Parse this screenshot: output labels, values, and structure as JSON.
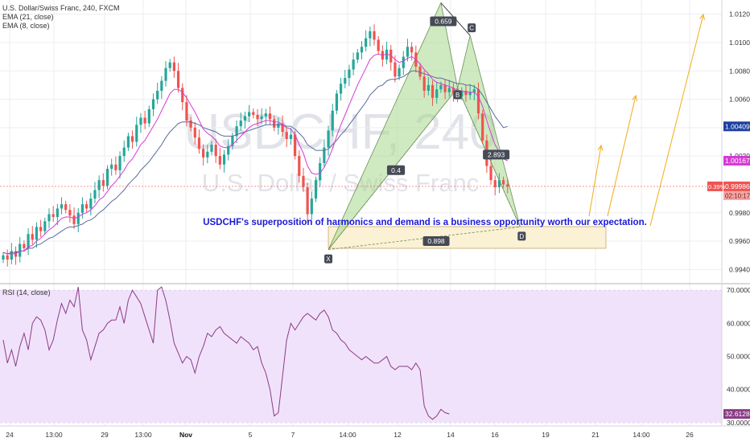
{
  "header": {
    "symbol_line": "U.S. Dollar/Swiss Franc, 240, FXCM",
    "indicators": [
      "EMA (21, close)",
      "EMA (8, close)"
    ]
  },
  "watermark": {
    "symbol": "USDCHF, 240",
    "name": "U.S. Dollar / Swiss Franc"
  },
  "annotation": "USDCHF's superposition of harmonics and demand is a business opportunity worth our expectation.",
  "colors": {
    "up": "#26a69a",
    "down": "#ef5350",
    "ema21": "#5b6c9a",
    "ema8": "#d63ad6",
    "rsi": "#8a3c86",
    "rsi_band": "#f1e2fb",
    "pattern": "#a8d98e",
    "zone": "#fbf1d5",
    "arrow": "#f2b22a",
    "text_blue": "#1a1ad6"
  },
  "chart_data": [
    {
      "type": "candlestick",
      "name": "USDCHF",
      "ylim": [
        0.993,
        1.013
      ],
      "y_ticks": [
        "1.01200",
        "1.01000",
        "1.00800",
        "1.00600",
        "1.00400",
        "1.00200",
        "0.99800",
        "0.99600",
        "0.99400"
      ],
      "x_ticks": [
        "24",
        "13:00",
        "29",
        "13:00",
        "Nov",
        "5",
        "7",
        "14:00",
        "12",
        "14",
        "16",
        "19",
        "21",
        "14:00",
        "26"
      ],
      "price_tags": [
        {
          "label": "1.00409",
          "value": 1.00409,
          "color": "#1e3fa0"
        },
        {
          "label": "1.00167",
          "value": 1.00167,
          "color": "#d63ad6"
        },
        {
          "label": "0.99986",
          "value": 0.99986,
          "color": "#ef5350"
        }
      ],
      "change_label": "0.39%",
      "countdown": "02:10:17",
      "closes": [
        0.995,
        0.9947,
        0.9953,
        0.9949,
        0.9958,
        0.9955,
        0.9965,
        0.9961,
        0.997,
        0.9967,
        0.9974,
        0.9979,
        0.9977,
        0.9983,
        0.9986,
        0.9982,
        0.9978,
        0.9972,
        0.998,
        0.9986,
        0.9983,
        0.999,
        0.9996,
        1.0003,
        0.9999,
        1.0011,
        1.0014,
        1.001,
        1.002,
        1.0026,
        1.0034,
        1.003,
        1.0042,
        1.0047,
        1.0043,
        1.0053,
        1.006,
        1.0066,
        1.0073,
        1.0082,
        1.0086,
        1.008,
        1.0068,
        1.0058,
        1.0045,
        1.004,
        1.0033,
        1.0025,
        1.0019,
        1.0023,
        1.0028,
        1.002,
        1.0014,
        1.0021,
        1.0027,
        1.0034,
        1.0041,
        1.0045,
        1.0048,
        1.0051,
        1.0049,
        1.0046,
        1.0048,
        1.005,
        1.0046,
        1.004,
        1.0043,
        1.0037,
        1.0032,
        1.0035,
        1.002,
        1.0006,
        0.9998,
        0.9979,
        0.999,
        1.0003,
        1.0015,
        1.0026,
        1.0038,
        1.0052,
        1.0064,
        1.0071,
        1.0075,
        1.0081,
        1.0088,
        1.0093,
        1.0097,
        1.0103,
        1.0108,
        1.0102,
        1.0094,
        1.0088,
        1.0095,
        1.0086,
        1.0076,
        1.0082,
        1.009,
        1.0097,
        1.0093,
        1.0083,
        1.0076,
        1.0066,
        1.007,
        1.0061,
        1.0067,
        1.007,
        1.0065,
        1.0068,
        1.0064,
        1.0062,
        1.0066,
        1.0063,
        1.0065,
        1.0067,
        1.005,
        1.0031,
        1.0013,
        1.0003,
        0.9998,
        1.0003,
        1.0,
        0.99986
      ],
      "ema21": [
        0.9952,
        0.9951,
        0.9952,
        0.9952,
        0.9953,
        0.9953,
        0.9955,
        0.9955,
        0.9957,
        0.9958,
        0.996,
        0.9962,
        0.9963,
        0.9965,
        0.9967,
        0.9969,
        0.997,
        0.997,
        0.9971,
        0.9972,
        0.9974,
        0.9975,
        0.9977,
        0.998,
        0.9982,
        0.9985,
        0.9988,
        0.999,
        0.9993,
        0.9996,
        1.0,
        1.0003,
        1.0006,
        1.001,
        1.0013,
        1.0016,
        1.002,
        1.0024,
        1.0028,
        1.0033,
        1.0037,
        1.004,
        1.0043,
        1.0044,
        1.0044,
        1.0044,
        1.0043,
        1.0042,
        1.004,
        1.0039,
        1.0038,
        1.0037,
        1.0035,
        1.0034,
        1.0034,
        1.0034,
        1.0035,
        1.0036,
        1.0037,
        1.0038,
        1.0039,
        1.004,
        1.0041,
        1.0042,
        1.0042,
        1.0042,
        1.0042,
        1.0042,
        1.0041,
        1.0041,
        1.0039,
        1.0036,
        1.0033,
        1.0028,
        1.0026,
        1.0024,
        1.0024,
        1.0024,
        1.0025,
        1.0028,
        1.0031,
        1.0035,
        1.0038,
        1.0042,
        1.0046,
        1.005,
        1.0054,
        1.0058,
        1.0063,
        1.0066,
        1.0069,
        1.007,
        1.0073,
        1.0074,
        1.0074,
        1.0075,
        1.0076,
        1.0078,
        1.008,
        1.008,
        1.0079,
        1.0078,
        1.0077,
        1.0076,
        1.0075,
        1.0075,
        1.0074,
        1.0073,
        1.0072,
        1.0071,
        1.0071,
        1.007,
        1.007,
        1.0069,
        1.0067,
        1.0063,
        1.0058,
        1.0053,
        1.0048,
        1.0044,
        1.004,
        1.00409
      ],
      "ema8": [
        0.9952,
        0.9951,
        0.9951,
        0.9951,
        0.9953,
        0.9953,
        0.9956,
        0.9957,
        0.996,
        0.9962,
        0.9965,
        0.9968,
        0.997,
        0.9973,
        0.9976,
        0.9977,
        0.9977,
        0.9976,
        0.9977,
        0.9979,
        0.998,
        0.9982,
        0.9985,
        0.9989,
        0.9991,
        0.9995,
        0.9999,
        1.0002,
        1.0006,
        1.001,
        1.0015,
        1.0018,
        1.0023,
        1.0028,
        1.0031,
        1.0036,
        1.0041,
        1.0046,
        1.0052,
        1.0058,
        1.0064,
        1.0067,
        1.0067,
        1.0065,
        1.0061,
        1.0056,
        1.0051,
        1.0045,
        1.0039,
        1.0036,
        1.0034,
        1.0031,
        1.0027,
        1.0026,
        1.0026,
        1.0028,
        1.0031,
        1.0034,
        1.0037,
        1.004,
        1.0042,
        1.0043,
        1.0044,
        1.0045,
        1.0045,
        1.0044,
        1.0044,
        1.0042,
        1.004,
        1.0039,
        1.0035,
        1.0028,
        1.0022,
        1.0013,
        1.0008,
        1.0007,
        1.0008,
        1.0012,
        1.0018,
        1.0025,
        1.0034,
        1.0042,
        1.0049,
        1.0056,
        1.0063,
        1.007,
        1.0076,
        1.0082,
        1.0088,
        1.0091,
        1.0092,
        1.0091,
        1.0092,
        1.0091,
        1.0088,
        1.0086,
        1.0087,
        1.0089,
        1.009,
        1.0088,
        1.0085,
        1.0081,
        1.0078,
        1.0074,
        1.0072,
        1.0071,
        1.007,
        1.0069,
        1.0068,
        1.0066,
        1.0066,
        1.0065,
        1.0065,
        1.0065,
        1.0062,
        1.0055,
        1.0045,
        1.0036,
        1.0028,
        1.0023,
        1.0018,
        1.00167
      ]
    },
    {
      "type": "line",
      "name": "RSI (14, close)",
      "ylim": [
        29,
        72
      ],
      "band": [
        30,
        70
      ],
      "y_ticks": [
        "70.0000",
        "60.0000",
        "50.0000",
        "40.0000",
        "30.0000"
      ],
      "last_label": "32.6128",
      "values": [
        55,
        48,
        52,
        47,
        53,
        57,
        52,
        60,
        62,
        61,
        58,
        52,
        55,
        61,
        66,
        63,
        67,
        65,
        71,
        58,
        55,
        49,
        53,
        57,
        58,
        60,
        61,
        61,
        65,
        60,
        67,
        70,
        68,
        66,
        62,
        58,
        54,
        70,
        71,
        67,
        61,
        54,
        51,
        48,
        50,
        49,
        45,
        50,
        53,
        57,
        56,
        58,
        59,
        57,
        56,
        55,
        54,
        56,
        55,
        54,
        52,
        53,
        48,
        45,
        40,
        32,
        33,
        44,
        55,
        60,
        58,
        60,
        62,
        63,
        62,
        61,
        63,
        64,
        62,
        58,
        57,
        55,
        54,
        52,
        51,
        50,
        49,
        50,
        49,
        48,
        48,
        49,
        50,
        47,
        46,
        47,
        47,
        47,
        46,
        48,
        46,
        35,
        32,
        31,
        32,
        34,
        33,
        32.6128
      ]
    }
  ],
  "pattern": {
    "points": [
      {
        "label": "X",
        "index": 78,
        "price": 0.9954
      },
      {
        "label": "A",
        "index": 105,
        "price": 1.0128
      },
      {
        "label": "B",
        "index": 109,
        "price": 1.0068
      },
      {
        "label": "C",
        "index": 112,
        "price": 1.0105
      },
      {
        "label": "D",
        "index": 124,
        "price": 0.997
      }
    ],
    "ratios": [
      {
        "label": "0.659",
        "price": 1.0115
      },
      {
        "label": "0.4",
        "price": 1.001
      },
      {
        "label": "2.893",
        "price": 1.0021
      },
      {
        "label": "0.898",
        "price": 0.996
      }
    ]
  }
}
